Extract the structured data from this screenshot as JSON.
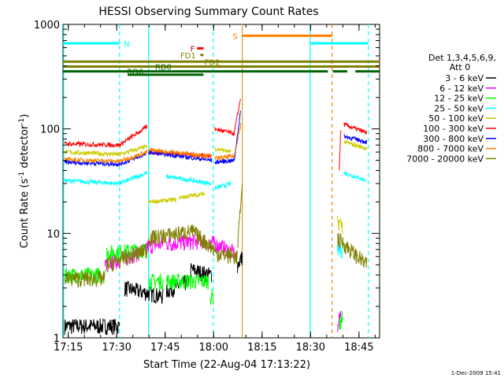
{
  "chart_data": {
    "type": "line",
    "title": "HESSI Observing Summary Count Rates",
    "xlabel": "Start Time (22-Aug-04 17:13:22)",
    "ylabel_main": "Count Rate (s",
    "ylabel_sup1": "-1",
    "ylabel_mid": " detector",
    "ylabel_sup2": "-1",
    "ylabel_end": ")",
    "y_scale": "log",
    "ylim": [
      1,
      1000
    ],
    "xlim_minutes": [
      0,
      98
    ],
    "x_ticks": [
      {
        "m": 1.63,
        "label": "17:15"
      },
      {
        "m": 16.63,
        "label": "17:30"
      },
      {
        "m": 31.63,
        "label": "17:45"
      },
      {
        "m": 46.63,
        "label": "18:00"
      },
      {
        "m": 61.63,
        "label": "18:15"
      },
      {
        "m": 76.63,
        "label": "18:30"
      },
      {
        "m": 91.63,
        "label": "18:45"
      }
    ],
    "y_ticks": [
      {
        "v": 1,
        "label": "1"
      },
      {
        "v": 10,
        "label": "10"
      },
      {
        "v": 100,
        "label": "100"
      },
      {
        "v": 1000,
        "label": "1000"
      }
    ],
    "legend_header": [
      "Det 1,3,4,5,6,9,",
      "Att 0"
    ],
    "legend_placement": "right",
    "series": [
      {
        "name": "3 - 6 keV",
        "color": "#000000",
        "segments": [
          {
            "x0": 0.5,
            "x1": 17.5,
            "y0": 1.3,
            "y1": 1.3
          },
          {
            "x0": 19,
            "x1": 31,
            "y0": 3.0,
            "y1": 2.5
          },
          {
            "x0": 32,
            "x1": 39,
            "y0": 2.8,
            "y1": 3.5
          },
          {
            "x0": 39.5,
            "x1": 46,
            "y0": 4.5,
            "y1": 4.0
          },
          {
            "x0": 54,
            "x1": 55.5,
            "y0": 5.0,
            "y1": 6.0
          }
        ]
      },
      {
        "name": "6 - 12 keV",
        "color": "#ff00ff",
        "segments": [
          {
            "x0": 13,
            "x1": 26,
            "y0": 5.0,
            "y1": 7.0
          },
          {
            "x0": 26,
            "x1": 31,
            "y0": 7.5,
            "y1": 8.0
          },
          {
            "x0": 32,
            "x1": 44,
            "y0": 8.0,
            "y1": 8.5
          },
          {
            "x0": 45,
            "x1": 53,
            "y0": 8.5,
            "y1": 6.5
          },
          {
            "x0": 85,
            "x1": 86,
            "y0": 1.2,
            "y1": 1.8
          }
        ]
      },
      {
        "name": "12 - 25 keV",
        "color": "#00ff00",
        "segments": [
          {
            "x0": 0.5,
            "x1": 13,
            "y0": 4.0,
            "y1": 4.0
          },
          {
            "x0": 13.5,
            "x1": 26,
            "y0": 6.5,
            "y1": 7.0
          },
          {
            "x0": 26.5,
            "x1": 31,
            "y0": 3.5,
            "y1": 3.5
          },
          {
            "x0": 32,
            "x1": 45,
            "y0": 3.5,
            "y1": 3.5
          },
          {
            "x0": 45.5,
            "x1": 46.5,
            "y0": 2.5,
            "y1": 2.5
          },
          {
            "x0": 85.5,
            "x1": 86.5,
            "y0": 1.3,
            "y1": 1.6
          }
        ]
      },
      {
        "name": "25 - 50 keV",
        "color": "#00ffff",
        "segments": [
          {
            "x0": 0.5,
            "x1": 17.5,
            "y0": 32,
            "y1": 30
          },
          {
            "x0": 17.5,
            "x1": 26,
            "y0": 30,
            "y1": 38
          },
          {
            "x0": 32,
            "x1": 46,
            "y0": 35,
            "y1": 30
          },
          {
            "x0": 47,
            "x1": 52,
            "y0": 27,
            "y1": 30
          },
          {
            "x0": 85,
            "x1": 86.5,
            "y0": 7.0,
            "y1": 7.0
          },
          {
            "x0": 87,
            "x1": 94,
            "y0": 38,
            "y1": 32
          }
        ]
      },
      {
        "name": "50 - 100 keV",
        "color": "#cccc00",
        "segments": [
          {
            "x0": 0.5,
            "x1": 17.5,
            "y0": 60,
            "y1": 57
          },
          {
            "x0": 17.5,
            "x1": 26,
            "y0": 57,
            "y1": 68
          },
          {
            "x0": 26.5,
            "x1": 35,
            "y0": 20,
            "y1": 21
          },
          {
            "x0": 36,
            "x1": 44,
            "y0": 22,
            "y1": 24
          },
          {
            "x0": 47,
            "x1": 52,
            "y0": 65,
            "y1": 60
          },
          {
            "x0": 85,
            "x1": 86.5,
            "y0": 13,
            "y1": 12
          },
          {
            "x0": 87,
            "x1": 94,
            "y0": 75,
            "y1": 65
          }
        ]
      },
      {
        "name": "100 - 300 keV",
        "color": "#ff0000",
        "segments": [
          {
            "x0": 0.5,
            "x1": 17.5,
            "y0": 72,
            "y1": 70
          },
          {
            "x0": 17.5,
            "x1": 26,
            "y0": 70,
            "y1": 105
          },
          {
            "x0": 26.5,
            "x1": 46,
            "y0": 60,
            "y1": 55
          },
          {
            "x0": 47,
            "x1": 53,
            "y0": 100,
            "y1": 90
          },
          {
            "x0": 53,
            "x1": 55,
            "y0": 90,
            "y1": 200
          },
          {
            "x0": 85.5,
            "x1": 86,
            "y0": 40,
            "y1": 100
          },
          {
            "x0": 87,
            "x1": 94,
            "y0": 110,
            "y1": 92
          }
        ]
      },
      {
        "name": "300 - 800 keV",
        "color": "#0000ff",
        "segments": [
          {
            "x0": 0.5,
            "x1": 17.5,
            "y0": 48,
            "y1": 46
          },
          {
            "x0": 17.5,
            "x1": 26,
            "y0": 46,
            "y1": 58
          },
          {
            "x0": 26.5,
            "x1": 46,
            "y0": 60,
            "y1": 50
          },
          {
            "x0": 47,
            "x1": 53,
            "y0": 48,
            "y1": 50
          },
          {
            "x0": 53,
            "x1": 55,
            "y0": 50,
            "y1": 150
          },
          {
            "x0": 87,
            "x1": 94,
            "y0": 85,
            "y1": 75
          }
        ]
      },
      {
        "name": "800 - 7000 keV",
        "color": "#ff8000",
        "segments": [
          {
            "x0": 0.5,
            "x1": 17.5,
            "y0": 51,
            "y1": 49
          },
          {
            "x0": 17.5,
            "x1": 26,
            "y0": 49,
            "y1": 60
          },
          {
            "x0": 26.5,
            "x1": 46,
            "y0": 63,
            "y1": 55
          },
          {
            "x0": 47,
            "x1": 53,
            "y0": 52,
            "y1": 55
          },
          {
            "x0": 53,
            "x1": 55,
            "y0": 55,
            "y1": 110
          }
        ]
      },
      {
        "name": "7000 - 20000 keV",
        "color": "#808000",
        "segments": [
          {
            "x0": 0.5,
            "x1": 13,
            "y0": 3.7,
            "y1": 3.7
          },
          {
            "x0": 13.5,
            "x1": 26,
            "y0": 5.0,
            "y1": 7.0
          },
          {
            "x0": 26.5,
            "x1": 40,
            "y0": 9.0,
            "y1": 10.5
          },
          {
            "x0": 40,
            "x1": 47,
            "y0": 10.5,
            "y1": 7.0
          },
          {
            "x0": 47,
            "x1": 54,
            "y0": 6.5,
            "y1": 6.0
          },
          {
            "x0": 54,
            "x1": 55.5,
            "y0": 7.0,
            "y1": 30
          },
          {
            "x0": 85,
            "x1": 94,
            "y0": 9.0,
            "y1": 5.0
          }
        ]
      }
    ],
    "vlines": [
      {
        "m": 0.2,
        "style": "solid",
        "color": "#00ffff"
      },
      {
        "m": 17.5,
        "style": "dashed",
        "color": "#00ffff"
      },
      {
        "m": 26.5,
        "style": "solid",
        "color": "#00ffff"
      },
      {
        "m": 46.5,
        "style": "dashed",
        "color": "#00ffff"
      },
      {
        "m": 55.5,
        "style": "solid",
        "color": "#d4a020"
      },
      {
        "m": 76.5,
        "style": "solid",
        "color": "#00ffff"
      },
      {
        "m": 83.3,
        "style": "dashed",
        "color": "#ff8000"
      },
      {
        "m": 94.5,
        "style": "dashed",
        "color": "#00ffff"
      }
    ],
    "flag_bars": [
      {
        "label": "N",
        "color": "#00ffff",
        "level": 660,
        "ranges": [
          [
            0,
            17.5
          ],
          [
            76.5,
            94.5
          ]
        ],
        "label_m": 18.8,
        "label_color": "#00ffff"
      },
      {
        "label": "S",
        "color": "#ff8000",
        "level": 780,
        "ranges": [
          [
            55.5,
            83.3
          ]
        ],
        "label_m": 52.5,
        "label_color": "#ff8000"
      },
      {
        "label": "F",
        "color": "#ff0000",
        "level": 590,
        "ranges": [
          [
            41.5,
            43.5
          ]
        ],
        "label_m": 39.4,
        "label_color": "#cc0000"
      },
      {
        "label": "FD1",
        "color": "#808000",
        "level": 510,
        "ranges": [
          [
            42.5,
            43.5
          ]
        ],
        "label_m": 36.3,
        "label_color": "#808000"
      },
      {
        "label": "FD2",
        "color": "#808000",
        "level": 440,
        "ranges": [
          [
            0,
            98
          ]
        ],
        "label_m": 43.8,
        "label_color": "#808000"
      },
      {
        "label": "RD0",
        "color": "#808000",
        "level": 395,
        "ranges": [
          [
            0,
            98
          ]
        ],
        "label_m": 28.5,
        "label_color": "#006400"
      },
      {
        "label": "RD6",
        "color": "#006400",
        "level": 355,
        "ranges": [
          [
            0,
            82
          ],
          [
            83.5,
            88
          ],
          [
            90.5,
            98
          ]
        ],
        "label_m": 19.8,
        "label_color": "#006400"
      },
      {
        "label": "",
        "color": "#006400",
        "level": 330,
        "ranges": [
          [
            20,
            43.5
          ]
        ]
      }
    ],
    "footer_date": "1-Dec-2009 15:41"
  }
}
